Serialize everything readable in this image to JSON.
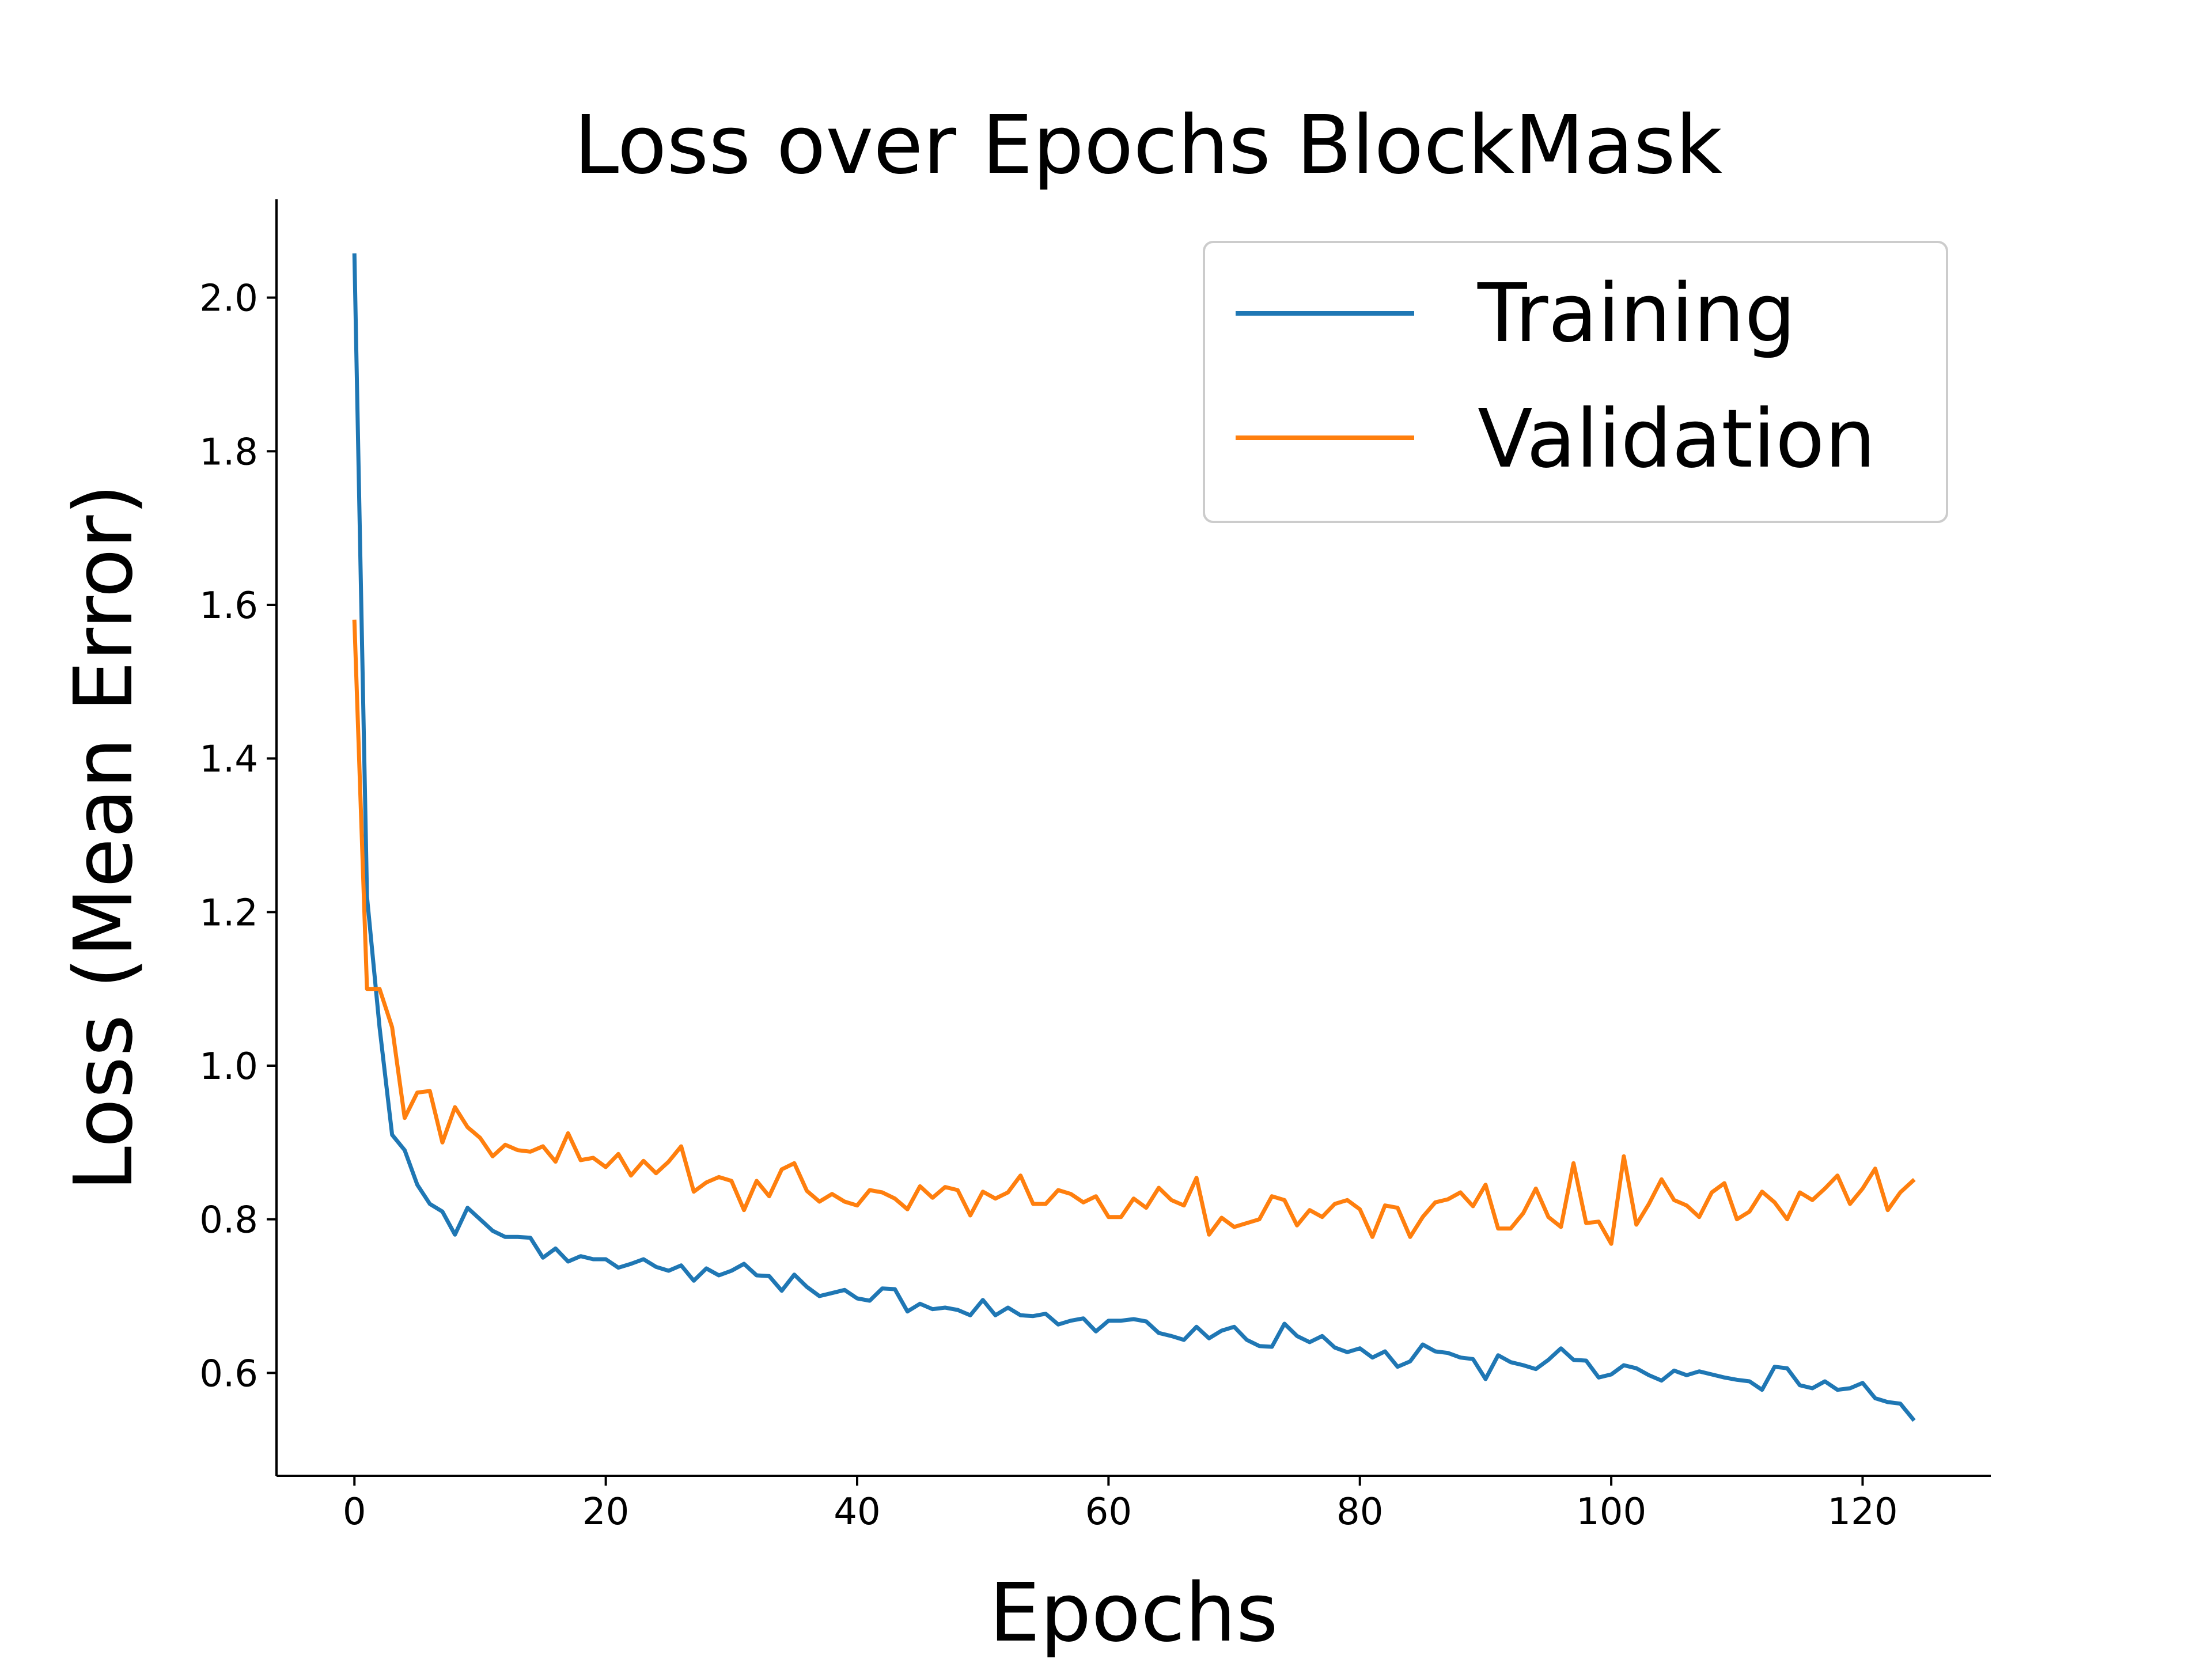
{
  "chart_data": {
    "type": "line",
    "title": "Loss over Epochs BlockMask",
    "xlabel": "Epochs",
    "ylabel": "Loss (Mean Error)",
    "xlim": [
      -6.2,
      130.2
    ],
    "ylim": [
      0.466,
      2.128
    ],
    "xticks": [
      0,
      20,
      40,
      60,
      80,
      100,
      120
    ],
    "yticks": [
      0.6,
      0.8,
      1.0,
      1.2,
      1.4,
      1.6,
      1.8,
      2.0
    ],
    "xtick_labels": [
      "0",
      "20",
      "40",
      "60",
      "80",
      "100",
      "120"
    ],
    "ytick_labels": [
      "0.6",
      "0.8",
      "1.0",
      "1.2",
      "1.4",
      "1.6",
      "1.8",
      "2.0"
    ],
    "grid": false,
    "legend_position": "upper right",
    "x": [
      0,
      1,
      2,
      3,
      4,
      5,
      6,
      7,
      8,
      9,
      10,
      11,
      12,
      13,
      14,
      15,
      16,
      17,
      18,
      19,
      20,
      21,
      22,
      23,
      24,
      25,
      26,
      27,
      28,
      29,
      30,
      31,
      32,
      33,
      34,
      35,
      36,
      37,
      38,
      39,
      40,
      41,
      42,
      43,
      44,
      45,
      46,
      47,
      48,
      49,
      50,
      51,
      52,
      53,
      54,
      55,
      56,
      57,
      58,
      59,
      60,
      61,
      62,
      63,
      64,
      65,
      66,
      67,
      68,
      69,
      70,
      71,
      72,
      73,
      74,
      75,
      76,
      77,
      78,
      79,
      80,
      81,
      82,
      83,
      84,
      85,
      86,
      87,
      88,
      89,
      90,
      91,
      92,
      93,
      94,
      95,
      96,
      97,
      98,
      99,
      100,
      101,
      102,
      103,
      104,
      105,
      106,
      107,
      108,
      109,
      110,
      111,
      112,
      113,
      114,
      115,
      116,
      117,
      118,
      119,
      120,
      121,
      122,
      123,
      124
    ],
    "series": [
      {
        "name": "Training",
        "color": "#1f77b4",
        "values": [
          2.055,
          1.22,
          1.05,
          0.91,
          0.89,
          0.845,
          0.82,
          0.81,
          0.78,
          0.815,
          0.8,
          0.785,
          0.777,
          0.777,
          0.776,
          0.75,
          0.762,
          0.745,
          0.752,
          0.748,
          0.748,
          0.737,
          0.742,
          0.748,
          0.738,
          0.733,
          0.74,
          0.72,
          0.736,
          0.727,
          0.733,
          0.742,
          0.727,
          0.726,
          0.707,
          0.728,
          0.712,
          0.7,
          0.704,
          0.708,
          0.697,
          0.694,
          0.71,
          0.709,
          0.68,
          0.69,
          0.683,
          0.685,
          0.682,
          0.675,
          0.695,
          0.675,
          0.685,
          0.675,
          0.674,
          0.677,
          0.663,
          0.668,
          0.671,
          0.654,
          0.668,
          0.668,
          0.67,
          0.667,
          0.652,
          0.648,
          0.643,
          0.66,
          0.645,
          0.655,
          0.66,
          0.643,
          0.635,
          0.634,
          0.664,
          0.648,
          0.64,
          0.648,
          0.633,
          0.627,
          0.632,
          0.62,
          0.628,
          0.608,
          0.615,
          0.637,
          0.628,
          0.626,
          0.62,
          0.618,
          0.592,
          0.623,
          0.614,
          0.61,
          0.605,
          0.617,
          0.632,
          0.617,
          0.616,
          0.594,
          0.598,
          0.61,
          0.606,
          0.597,
          0.59,
          0.603,
          0.597,
          0.602,
          0.598,
          0.594,
          0.591,
          0.589,
          0.578,
          0.608,
          0.606,
          0.584,
          0.58,
          0.589,
          0.578,
          0.58,
          0.587,
          0.567,
          0.562,
          0.56,
          0.54
        ]
      },
      {
        "name": "Validation",
        "color": "#ff7f0e",
        "values": [
          1.578,
          1.1,
          1.1,
          1.05,
          0.932,
          0.965,
          0.967,
          0.9,
          0.946,
          0.92,
          0.906,
          0.882,
          0.897,
          0.89,
          0.888,
          0.895,
          0.875,
          0.912,
          0.877,
          0.88,
          0.868,
          0.885,
          0.857,
          0.876,
          0.86,
          0.875,
          0.895,
          0.836,
          0.848,
          0.855,
          0.85,
          0.812,
          0.85,
          0.83,
          0.865,
          0.873,
          0.837,
          0.823,
          0.833,
          0.823,
          0.818,
          0.838,
          0.835,
          0.827,
          0.813,
          0.843,
          0.828,
          0.842,
          0.838,
          0.805,
          0.836,
          0.827,
          0.835,
          0.857,
          0.82,
          0.82,
          0.838,
          0.833,
          0.822,
          0.83,
          0.803,
          0.803,
          0.827,
          0.815,
          0.841,
          0.825,
          0.818,
          0.854,
          0.78,
          0.802,
          0.79,
          0.795,
          0.8,
          0.83,
          0.825,
          0.792,
          0.812,
          0.803,
          0.82,
          0.825,
          0.813,
          0.777,
          0.818,
          0.815,
          0.777,
          0.803,
          0.822,
          0.826,
          0.835,
          0.817,
          0.845,
          0.788,
          0.788,
          0.808,
          0.84,
          0.803,
          0.79,
          0.873,
          0.795,
          0.797,
          0.768,
          0.882,
          0.793,
          0.82,
          0.852,
          0.825,
          0.818,
          0.803,
          0.835,
          0.847,
          0.8,
          0.81,
          0.836,
          0.822,
          0.8,
          0.835,
          0.825,
          0.84,
          0.857,
          0.82,
          0.84,
          0.866,
          0.812,
          0.835,
          0.85
        ]
      }
    ]
  }
}
